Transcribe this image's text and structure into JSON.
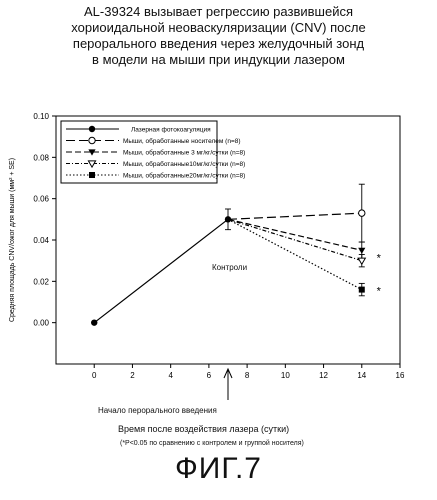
{
  "title_lines": [
    "AL-39324 вызывает регрессию развившейся",
    "хориоидальной неоваскуляризации (CNV) после",
    "перорального введения через желудочный зонд",
    "в модели на мыши при индукции лазером"
  ],
  "figure_label": "ФИГ.7",
  "annotations": {
    "control": "Контроли",
    "start_oral": "Начало перорального введения",
    "significance_note": "(*P<0.05  по сравнению с контролем и группой носителя)"
  },
  "chart_data": {
    "type": "line",
    "xlabel": "Время после воздействия лазера (сутки)",
    "ylabel": "Средняя площадь CNV/ожог для мыши (мм² + SE)",
    "xlim": [
      -2,
      16
    ],
    "ylim": [
      -0.02,
      0.1
    ],
    "xticks": [
      "0",
      "2",
      "4",
      "6",
      "8",
      "10",
      "12",
      "14",
      "16"
    ],
    "yticks": [
      "0.00",
      "0.02",
      "0.04",
      "0.06",
      "0.08",
      "0.10"
    ],
    "legend_placement": "top-left",
    "series": [
      {
        "name": "Лазерная фотокоагуляция",
        "marker": "filled-circle",
        "line": "solid",
        "x": [
          0,
          7
        ],
        "y": [
          0.0,
          0.05
        ],
        "err": [
          0,
          0.005
        ]
      },
      {
        "name": "Мыши, обработанные носителем (n=8)",
        "marker": "open-circle",
        "line": "long-dash",
        "x": [
          7,
          14
        ],
        "y": [
          0.05,
          0.053
        ],
        "err": [
          0,
          0.014
        ]
      },
      {
        "name": "Мыши, обработанные 3 мг/кг/сутки (n=8)",
        "marker": "filled-triangle-down",
        "line": "dash",
        "x": [
          7,
          14
        ],
        "y": [
          0.05,
          0.035
        ],
        "err": [
          0,
          0.004
        ]
      },
      {
        "name": "Мыши, обработанные10мг/кг/сутки (n=8)",
        "marker": "open-triangle-down",
        "line": "dash-dot",
        "x": [
          7,
          14
        ],
        "y": [
          0.05,
          0.03
        ],
        "err": [
          0,
          0.003
        ]
      },
      {
        "name": "Мыши, обработанные20мг/кг/сутки (n=8)",
        "marker": "filled-square",
        "line": "dotted",
        "x": [
          7,
          14
        ],
        "y": [
          0.05,
          0.016
        ],
        "err": [
          0,
          0.003
        ]
      }
    ],
    "significance_marks": [
      {
        "x": 14,
        "y": 0.032,
        "label": "*"
      },
      {
        "x": 14,
        "y": 0.016,
        "label": "*"
      }
    ]
  }
}
